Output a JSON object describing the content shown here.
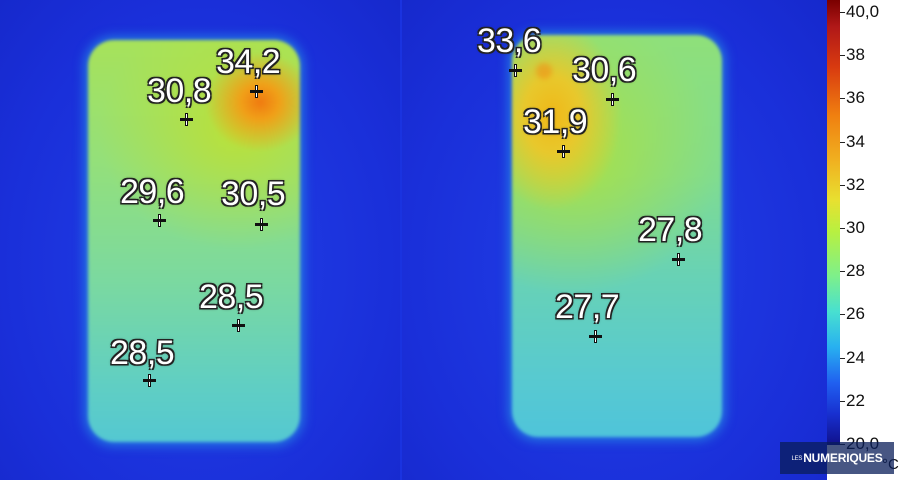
{
  "left_panel": {
    "readings": [
      {
        "label": "34,2"
      },
      {
        "label": "30,8"
      },
      {
        "label": "29,6"
      },
      {
        "label": "30,5"
      },
      {
        "label": "28,5"
      },
      {
        "label": "28,5"
      }
    ]
  },
  "right_panel": {
    "readings": [
      {
        "label": "33,6"
      },
      {
        "label": "30,6"
      },
      {
        "label": "31,9"
      },
      {
        "label": "27,8"
      },
      {
        "label": "27,7"
      }
    ]
  },
  "scale": {
    "labels": [
      "40,0",
      "38",
      "36",
      "34",
      "32",
      "30",
      "28",
      "26",
      "24",
      "22",
      "20,0"
    ],
    "unit": "°C",
    "min": 20.0,
    "max": 40.0
  },
  "watermark": {
    "prefix": "LES",
    "brand": "NUMERIQUES"
  },
  "colors": {
    "background_blue": "#1a33e0",
    "hot_orange": "#f07a10",
    "cool_cyan": "#54c8d2"
  }
}
